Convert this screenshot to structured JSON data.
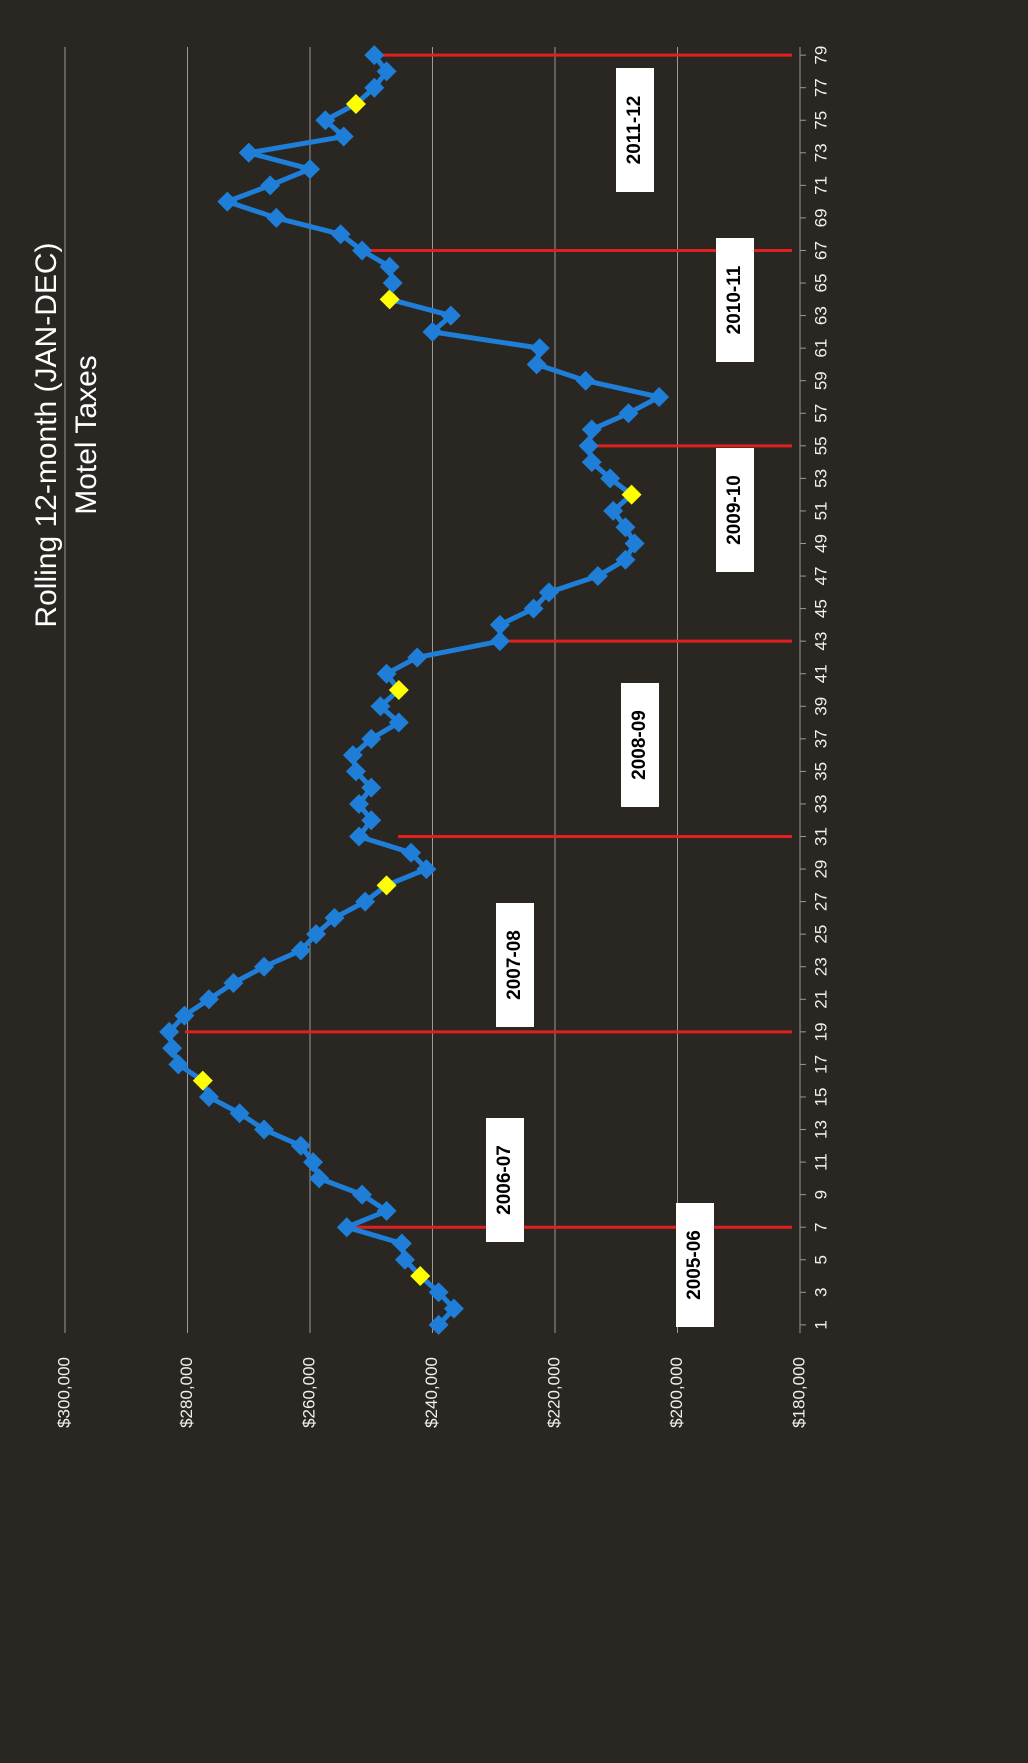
{
  "chart_data": {
    "type": "line",
    "title": "Rolling 12-month (JAN-DEC)",
    "subtitle": "Motel Taxes",
    "x": [
      1,
      2,
      3,
      4,
      5,
      6,
      7,
      8,
      9,
      10,
      11,
      12,
      13,
      14,
      15,
      16,
      17,
      18,
      19,
      20,
      21,
      22,
      23,
      24,
      25,
      26,
      27,
      28,
      29,
      30,
      31,
      32,
      33,
      34,
      35,
      36,
      37,
      38,
      39,
      40,
      41,
      42,
      43,
      44,
      45,
      46,
      47,
      48,
      49,
      50,
      51,
      52,
      53,
      54,
      55,
      56,
      57,
      58,
      59,
      60,
      61,
      62,
      63,
      64,
      65,
      66,
      67,
      68,
      69,
      70,
      71,
      72,
      73,
      74,
      75,
      76,
      77,
      78,
      79
    ],
    "series": [
      {
        "color": "#1f7fd8",
        "values": [
          239000,
          236500,
          239000,
          242000,
          244500,
          245000,
          254000,
          247500,
          251500,
          258500,
          259500,
          261500,
          267500,
          271500,
          276500,
          277500,
          281500,
          282500,
          283000,
          280500,
          276500,
          272500,
          267500,
          261500,
          259000,
          256000,
          251000,
          247500,
          241000,
          243500,
          252000,
          250000,
          252000,
          250000,
          252500,
          253000,
          250000,
          245500,
          248500,
          245500,
          247500,
          242500,
          229000,
          229000,
          223500,
          221000,
          213000,
          208500,
          207000,
          208500,
          210500,
          207500,
          211000,
          214000,
          214500,
          214000,
          208000,
          203000,
          215000,
          223000,
          222500,
          240000,
          237000,
          247000,
          246500,
          247000,
          251500,
          255000,
          265500,
          273500,
          266500,
          260000,
          270000,
          254500,
          257500,
          252500,
          249500,
          247500,
          249500
        ]
      }
    ],
    "highlight": {
      "color": "#ffff00",
      "x": [
        4,
        16,
        28,
        40,
        52,
        64,
        76
      ]
    },
    "xlim": [
      0.5,
      79.5
    ],
    "xticks": [
      1,
      3,
      5,
      7,
      9,
      11,
      13,
      15,
      17,
      19,
      21,
      23,
      25,
      27,
      29,
      31,
      33,
      35,
      37,
      39,
      41,
      43,
      45,
      47,
      49,
      51,
      53,
      55,
      57,
      59,
      61,
      63,
      65,
      67,
      69,
      71,
      73,
      75,
      77,
      79
    ],
    "ylim": [
      180000,
      300000
    ],
    "yticks": [
      {
        "value": 180000,
        "label": "$180,000"
      },
      {
        "value": 200000,
        "label": "$200,000"
      },
      {
        "value": 220000,
        "label": "$220,000"
      },
      {
        "value": 240000,
        "label": "$240,000"
      },
      {
        "value": 260000,
        "label": "$260,000"
      },
      {
        "value": 280000,
        "label": "$280,000"
      },
      {
        "value": 300000,
        "label": "$300,000"
      }
    ],
    "grid": true,
    "periods": [
      {
        "label": "2005-06",
        "end": 7
      },
      {
        "label": "2006-07",
        "end": 19
      },
      {
        "label": "2007-08",
        "end": 31
      },
      {
        "label": "2008-09",
        "end": 43
      },
      {
        "label": "2009-10",
        "end": 55
      },
      {
        "label": "2010-11",
        "end": 67
      },
      {
        "label": "2011-12",
        "end": 79
      }
    ],
    "period_line_color": "#e02020"
  }
}
